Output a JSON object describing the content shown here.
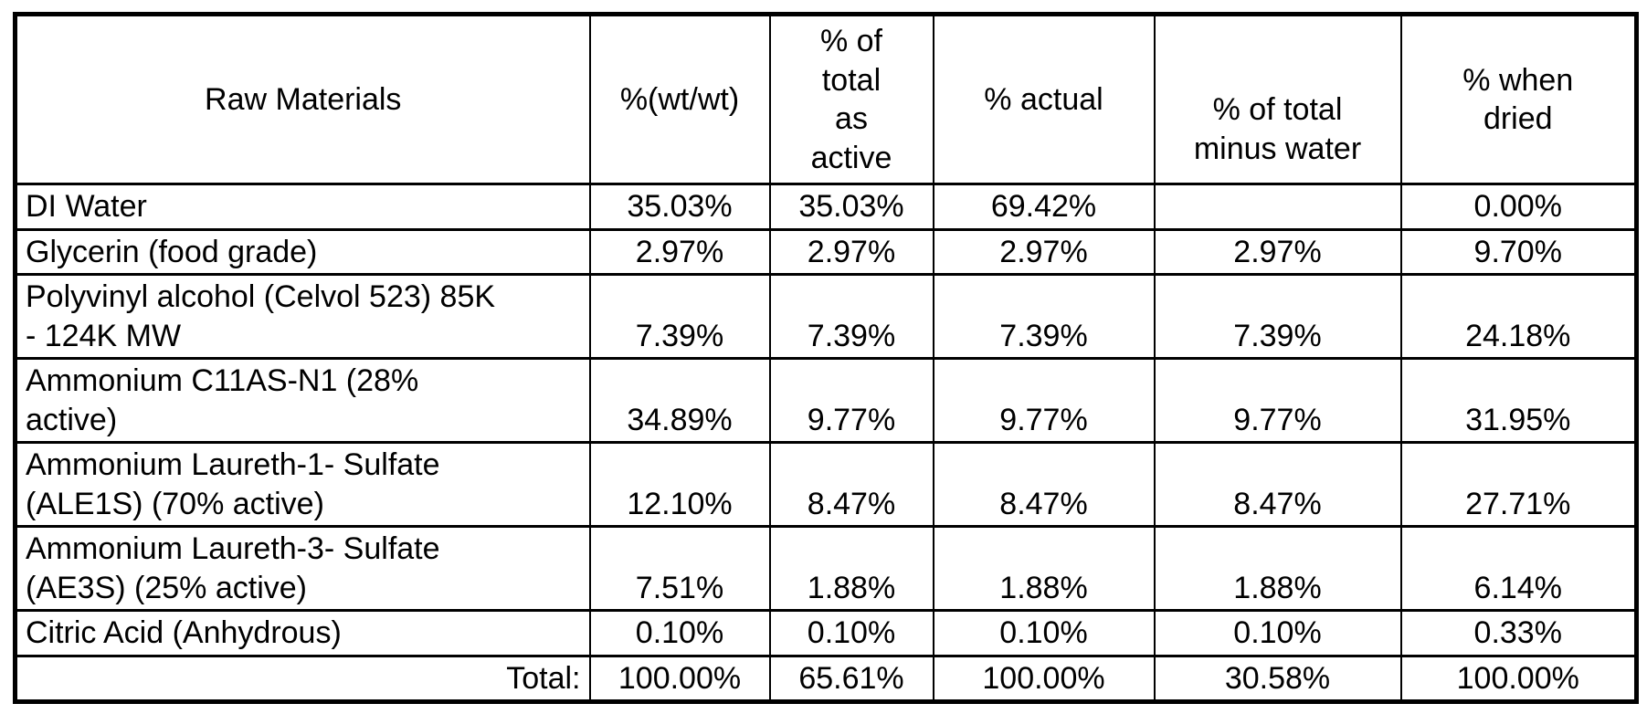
{
  "chart_data": {
    "type": "table",
    "columns": [
      "Raw Materials",
      "%(wt/wt)",
      "% of\ntotal\nas\nactive",
      "% actual",
      "% of total\nminus water",
      "% when\ndried"
    ],
    "rows": [
      {
        "name": "DI Water",
        "values": [
          "35.03%",
          "35.03%",
          "69.42%",
          "",
          "0.00%"
        ]
      },
      {
        "name": "Glycerin (food grade)",
        "values": [
          "2.97%",
          "2.97%",
          "2.97%",
          "2.97%",
          "9.70%"
        ]
      },
      {
        "name": "Polyvinyl alcohol (Celvol 523) 85K\n- 124K MW",
        "values": [
          "7.39%",
          "7.39%",
          "7.39%",
          "7.39%",
          "24.18%"
        ]
      },
      {
        "name": "Ammonium C11AS-N1 (28%\nactive)",
        "values": [
          "34.89%",
          "9.77%",
          "9.77%",
          "9.77%",
          "31.95%"
        ]
      },
      {
        "name": "Ammonium Laureth-1- Sulfate\n(ALE1S) (70% active)",
        "values": [
          "12.10%",
          "8.47%",
          "8.47%",
          "8.47%",
          "27.71%"
        ]
      },
      {
        "name": "Ammonium Laureth-3- Sulfate\n(AE3S) (25% active)",
        "values": [
          "7.51%",
          "1.88%",
          "1.88%",
          "1.88%",
          "6.14%"
        ]
      },
      {
        "name": "Citric Acid (Anhydrous)",
        "values": [
          "0.10%",
          "0.10%",
          "0.10%",
          "0.10%",
          "0.33%"
        ]
      }
    ],
    "total_row": {
      "label": "Total:",
      "values": [
        "100.00%",
        "65.61%",
        "100.00%",
        "30.58%",
        "100.00%"
      ]
    },
    "colors": {
      "border": "#000000",
      "background": "#ffffff",
      "text": "#000000"
    }
  }
}
